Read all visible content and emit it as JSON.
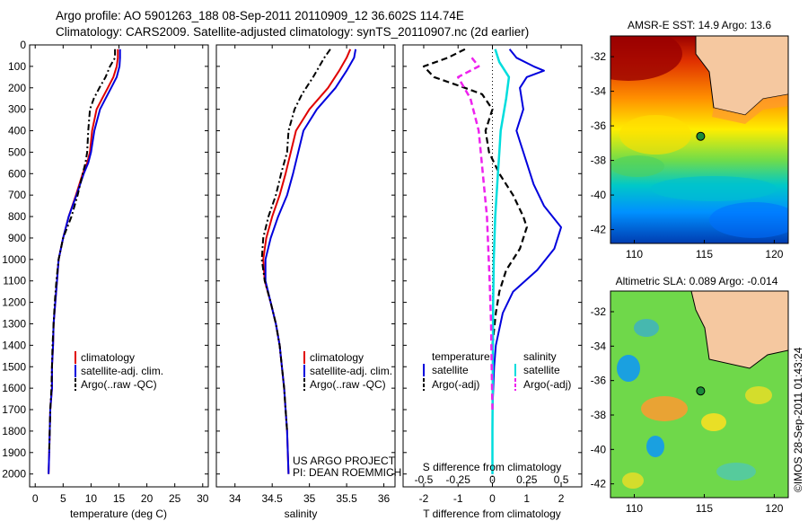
{
  "header": {
    "title_line1": "Argo profile: AO 5901263_188 08-Sep-2011 20110909_12 36.602S 114.74E",
    "title_line2": "Climatology: CARS2009. Satellite-adjusted climatology: synTS_20110907.nc (2d earlier)"
  },
  "stamp": "©IMOS 28-Sep-2011 01:43:24",
  "colors": {
    "climatology": "#e00000",
    "satellite": "#0000dd",
    "argo": "#000000",
    "sal_satellite": "#00dddd",
    "sal_argo": "#ee22ee",
    "land": "#f5c8a0"
  },
  "chart_data": [
    {
      "type": "line",
      "xlabel": "temperature (deg C)",
      "xlim": [
        -1,
        31
      ],
      "xticks": [
        0,
        5,
        10,
        15,
        20,
        25,
        30
      ],
      "ylim": [
        2060,
        0
      ],
      "yticks": [
        0,
        100,
        200,
        300,
        400,
        500,
        600,
        700,
        800,
        900,
        1000,
        1100,
        1200,
        1300,
        1400,
        1500,
        1600,
        1700,
        1800,
        1900,
        2000
      ],
      "legend": [
        "climatology",
        "satellite-adj. clim.",
        "Argo(..raw -QC)"
      ],
      "series": [
        {
          "name": "climatology",
          "x": [
            14.8,
            14.8,
            14.6,
            14.0,
            13.0,
            12.0,
            11.0,
            10.2,
            9.8,
            9.3,
            8.5,
            7.3,
            6.0,
            5.0,
            4.2,
            3.9,
            3.6,
            3.3,
            3.2,
            3.0,
            3.0,
            2.7,
            2.6,
            2.5,
            2.4
          ],
          "y": [
            20,
            60,
            100,
            150,
            200,
            250,
            300,
            400,
            500,
            550,
            600,
            700,
            800,
            900,
            1000,
            1100,
            1200,
            1300,
            1400,
            1500,
            1600,
            1700,
            1800,
            1900,
            2000
          ]
        },
        {
          "name": "satellite-adj. clim.",
          "x": [
            15.2,
            15.2,
            15.1,
            14.6,
            13.6,
            12.6,
            11.6,
            10.6,
            10.0,
            9.5,
            8.7,
            7.4,
            6.0,
            5.0,
            4.2,
            3.9,
            3.6,
            3.3,
            3.2,
            3.0,
            3.0,
            2.7,
            2.6,
            2.5,
            2.4
          ],
          "y": [
            20,
            60,
            100,
            150,
            200,
            250,
            300,
            400,
            500,
            550,
            600,
            700,
            800,
            900,
            1000,
            1100,
            1200,
            1300,
            1400,
            1500,
            1600,
            1700,
            1800,
            1900,
            2000
          ]
        },
        {
          "name": "Argo(..raw -QC)",
          "x": [
            14.3,
            14.3,
            13.4,
            12.6,
            11.5,
            10.5,
            9.8,
            9.5,
            9.3,
            9.0,
            8.5,
            7.6,
            6.5,
            5.0,
            4.2,
            3.8,
            3.5,
            3.3,
            3.1,
            3.0,
            2.9,
            2.7,
            2.6,
            2.5
          ],
          "y": [
            20,
            60,
            100,
            150,
            200,
            250,
            300,
            400,
            500,
            550,
            600,
            700,
            800,
            900,
            1000,
            1100,
            1200,
            1300,
            1400,
            1500,
            1600,
            1700,
            1800,
            1900
          ]
        }
      ]
    },
    {
      "type": "line",
      "xlabel": "salinity",
      "xlim": [
        33.75,
        36.15
      ],
      "xticks": [
        34,
        34.5,
        35,
        35.5,
        36
      ],
      "ylim": [
        2060,
        0
      ],
      "legend": [
        "climatology",
        "satellite-adj. clim.",
        "Argo(..raw -QC)"
      ],
      "annotation": [
        "US ARGO PROJECT",
        "PI: DEAN ROEMMICH"
      ],
      "series": [
        {
          "name": "climatology",
          "x": [
            35.55,
            35.5,
            35.4,
            35.25,
            35.0,
            34.82,
            34.75,
            34.68,
            34.6,
            34.5,
            34.42,
            34.38,
            34.4,
            34.48,
            34.55,
            34.6,
            34.63,
            34.66,
            34.68,
            34.7,
            34.72
          ],
          "y": [
            20,
            60,
            120,
            200,
            300,
            400,
            500,
            600,
            700,
            800,
            900,
            1000,
            1100,
            1200,
            1300,
            1400,
            1500,
            1600,
            1700,
            1800,
            2000
          ]
        },
        {
          "name": "satellite-adj. clim.",
          "x": [
            35.62,
            35.6,
            35.5,
            35.35,
            35.1,
            34.92,
            34.85,
            34.78,
            34.7,
            34.58,
            34.48,
            34.41,
            34.41,
            34.48,
            34.55,
            34.6,
            34.63,
            34.66,
            34.68,
            34.7,
            34.72
          ],
          "y": [
            20,
            60,
            120,
            200,
            300,
            400,
            500,
            600,
            700,
            800,
            900,
            1000,
            1100,
            1200,
            1300,
            1400,
            1500,
            1600,
            1700,
            1800,
            2000
          ]
        },
        {
          "name": "Argo(..raw -QC)",
          "x": [
            35.28,
            35.2,
            35.05,
            34.9,
            34.8,
            34.72,
            34.7,
            34.62,
            34.55,
            34.45,
            34.38,
            34.36,
            34.4,
            34.48,
            34.55,
            34.6,
            34.63,
            34.66,
            34.68,
            34.7
          ],
          "y": [
            20,
            60,
            150,
            230,
            300,
            400,
            500,
            600,
            700,
            800,
            900,
            1000,
            1100,
            1200,
            1300,
            1400,
            1500,
            1600,
            1700,
            1800
          ]
        }
      ]
    },
    {
      "type": "line",
      "xlabel": "T difference from climatology",
      "xlabel_top": "S difference from climatology",
      "xlim": [
        -2.6,
        2.6
      ],
      "xticks": [
        -2,
        -1,
        0,
        1,
        2
      ],
      "xticks_top": [
        -0.5,
        -0.25,
        0,
        0.25,
        0.5
      ],
      "xticks_top_labels": [
        "-0.5",
        "-0.25",
        "0",
        "0.25",
        "0.5"
      ],
      "ylim": [
        2060,
        0
      ],
      "legend_temperature": {
        "header": "temperature",
        "items": [
          "satellite",
          "Argo(-adj)"
        ]
      },
      "legend_salinity": {
        "header": "salinity",
        "items": [
          "satellite",
          "Argo(-adj)"
        ]
      },
      "series": [
        {
          "name": "temperature satellite",
          "x": [
            0.5,
            0.7,
            1.2,
            1.5,
            1.0,
            0.8,
            0.9,
            0.7,
            0.8,
            1.0,
            1.2,
            1.5,
            2.0,
            1.8,
            1.3,
            0.6,
            0.3,
            0.1,
            0.05,
            0,
            0,
            0
          ],
          "y": [
            20,
            60,
            100,
            120,
            150,
            200,
            300,
            400,
            450,
            550,
            650,
            750,
            850,
            950,
            1050,
            1150,
            1250,
            1400,
            1500,
            1700,
            1900,
            2000
          ]
        },
        {
          "name": "temperature Argo(-adj)",
          "x": [
            -0.8,
            -1.3,
            -2.0,
            -1.7,
            -0.8,
            -0.3,
            0,
            -0.2,
            -0.1,
            0.2,
            0.6,
            0.9,
            1.0,
            0.8,
            0.4,
            0.2,
            0.1,
            0
          ],
          "y": [
            20,
            60,
            100,
            150,
            200,
            230,
            300,
            400,
            500,
            600,
            700,
            800,
            850,
            950,
            1050,
            1150,
            1250,
            1400
          ]
        },
        {
          "name": "salinity satellite",
          "x": [
            0.02,
            0.05,
            0.12,
            0.1,
            0.06,
            0.05,
            0.04,
            0.03,
            0.02,
            0.015,
            0.01,
            0.008,
            0.005,
            0.003,
            0.002,
            0,
            0
          ],
          "y": [
            20,
            80,
            150,
            250,
            400,
            500,
            600,
            700,
            800,
            900,
            1000,
            1100,
            1200,
            1400,
            1600,
            1800,
            2000
          ]
        },
        {
          "name": "salinity Argo(-adj)",
          "x": [
            -0.15,
            -0.1,
            -0.25,
            -0.16,
            -0.1,
            -0.07,
            -0.04,
            -0.02,
            -0.01,
            -0.005,
            0
          ],
          "y": [
            60,
            100,
            150,
            250,
            400,
            600,
            800,
            1100,
            1300,
            1500,
            1700
          ]
        }
      ]
    },
    {
      "type": "heatmap",
      "title": "AMSR-E SST: 14.9 Argo: 13.6",
      "xlim": [
        108.3,
        121
      ],
      "ylim": [
        -42.8,
        -30.8
      ],
      "xticks": [
        110,
        115,
        120
      ],
      "yticks": [
        -32,
        -34,
        -36,
        -38,
        -40,
        -42
      ],
      "float_position": [
        114.74,
        -36.602
      ]
    },
    {
      "type": "heatmap",
      "title": "Altimetric SLA: 0.089 Argo: -0.014",
      "xlim": [
        108.3,
        121
      ],
      "ylim": [
        -42.8,
        -30.8
      ],
      "xticks": [
        110,
        115,
        120
      ],
      "yticks": [
        -32,
        -34,
        -36,
        -38,
        -40,
        -42
      ],
      "float_position": [
        114.74,
        -36.602
      ]
    }
  ]
}
